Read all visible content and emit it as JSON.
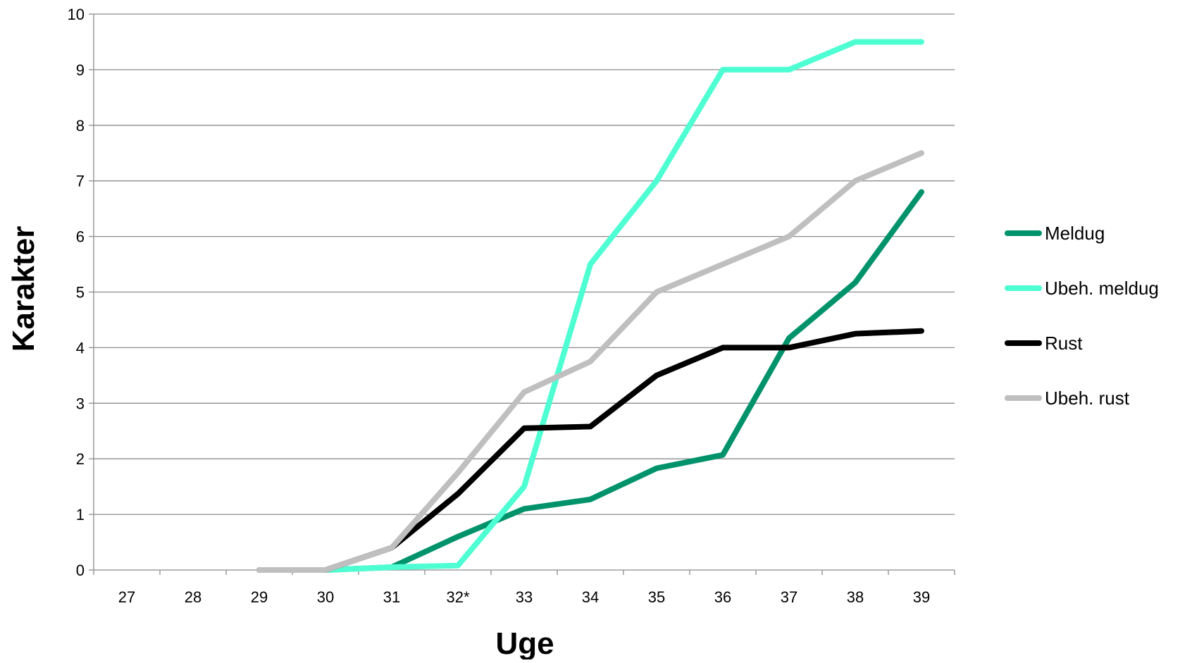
{
  "chart_data": {
    "type": "line",
    "xlabel": "Uge",
    "ylabel": "Karakter",
    "categories": [
      "27",
      "28",
      "29",
      "30",
      "31",
      "32*",
      "33",
      "34",
      "35",
      "36",
      "37",
      "38",
      "39"
    ],
    "ylim": [
      0,
      10
    ],
    "yticks": [
      0,
      1,
      2,
      3,
      4,
      5,
      6,
      7,
      8,
      9,
      10
    ],
    "grid": "horizontal",
    "legend_position": "right",
    "series": [
      {
        "name": "Meldug",
        "color": "#00936B",
        "values": [
          null,
          null,
          null,
          0.0,
          0.05,
          0.6,
          1.1,
          1.27,
          1.83,
          2.07,
          4.17,
          5.17,
          6.8
        ]
      },
      {
        "name": "Ubeh. meldug",
        "color": "#4DFFD2",
        "values": [
          null,
          null,
          null,
          0.0,
          0.05,
          0.08,
          1.5,
          5.5,
          7.0,
          9.0,
          9.0,
          9.5,
          9.5
        ]
      },
      {
        "name": "Rust",
        "color": "#000000",
        "values": [
          null,
          null,
          0.0,
          0.0,
          0.4,
          1.37,
          2.55,
          2.58,
          3.5,
          4.0,
          4.0,
          4.25,
          4.3
        ]
      },
      {
        "name": "Ubeh. rust",
        "color": "#BFBFBF",
        "values": [
          null,
          null,
          0.0,
          0.0,
          0.4,
          1.75,
          3.2,
          3.75,
          5.0,
          5.5,
          6.0,
          7.0,
          7.5
        ]
      }
    ]
  }
}
